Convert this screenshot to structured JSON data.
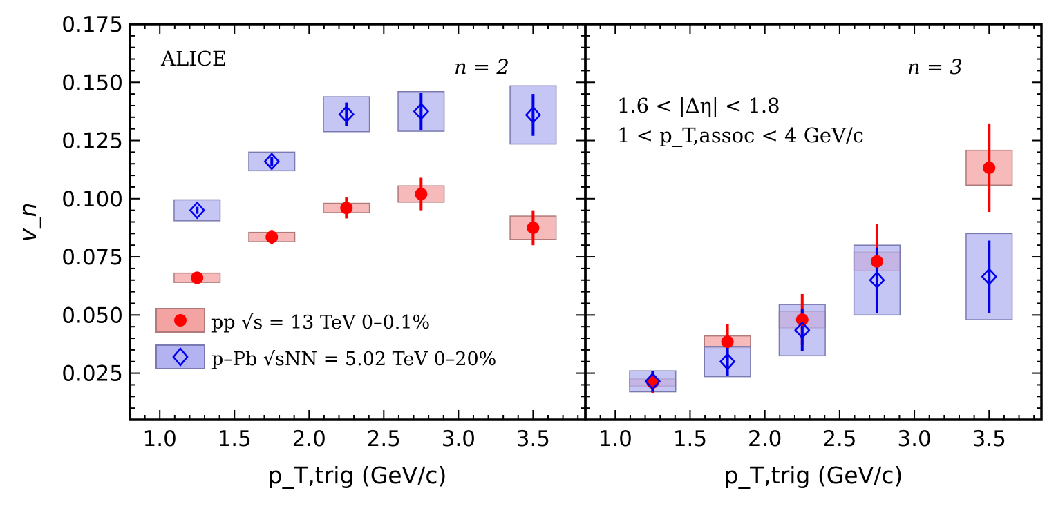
{
  "chart_data": [
    {
      "type": "scatter",
      "panel": "left",
      "annotations": [
        "ALICE",
        "n = 2"
      ],
      "xlabel": "p_T,trig (GeV/c)",
      "ylabel": "v_n",
      "xlim": [
        0.8,
        3.85
      ],
      "ylim": [
        0.005,
        0.175
      ],
      "xticks": [
        "1.0",
        "1.5",
        "2.0",
        "2.5",
        "3.0",
        "3.5"
      ],
      "yticks": [
        "0.025",
        "0.050",
        "0.075",
        "0.100",
        "0.125",
        "0.150",
        "0.175"
      ],
      "legend_placement": "lower-left",
      "series": [
        {
          "name": "pp √s = 13 TeV 0–0.1%",
          "marker": "circle",
          "color": "#ff0000",
          "box_color": "#f4a3a3",
          "x": [
            1.25,
            1.75,
            2.25,
            2.75,
            3.5
          ],
          "y": [
            0.066,
            0.0835,
            0.096,
            0.102,
            0.0875
          ],
          "stat_err": [
            0.0015,
            0.003,
            0.0045,
            0.007,
            0.0075
          ],
          "sys_err": [
            0.002,
            0.002,
            0.002,
            0.0035,
            0.005
          ]
        },
        {
          "name": "p–Pb √sNN = 5.02 TeV 0–20%",
          "marker": "diamond",
          "color": "#0000ee",
          "box_color": "#b3b3f2",
          "x": [
            1.25,
            1.75,
            2.25,
            2.75,
            3.5
          ],
          "y": [
            0.095,
            0.116,
            0.1363,
            0.1375,
            0.136
          ],
          "stat_err": [
            0.0015,
            0.002,
            0.005,
            0.008,
            0.009
          ],
          "sys_err": [
            0.0045,
            0.004,
            0.0075,
            0.0085,
            0.0125
          ]
        }
      ]
    },
    {
      "type": "scatter",
      "panel": "right",
      "annotations": [
        "n = 3",
        "1.6 < |Δη| < 1.8",
        "1 < p_T,assoc < 4 GeV/c"
      ],
      "xlabel": "p_T,trig (GeV/c)",
      "ylabel": "",
      "xlim": [
        0.8,
        3.85
      ],
      "ylim": [
        0.005,
        0.175
      ],
      "xticks": [
        "1.0",
        "1.5",
        "2.0",
        "2.5",
        "3.0",
        "3.5"
      ],
      "series": [
        {
          "name": "pp √s = 13 TeV 0–0.1%",
          "marker": "circle",
          "color": "#ff0000",
          "box_color": "#f4a3a3",
          "x": [
            1.25,
            1.75,
            2.25,
            2.75,
            3.5
          ],
          "y": [
            0.021,
            0.0385,
            0.048,
            0.073,
            0.1133
          ],
          "stat_err": [
            0.0045,
            0.0075,
            0.011,
            0.016,
            0.019
          ],
          "sys_err": [
            0.0015,
            0.0025,
            0.0035,
            0.004,
            0.0075
          ]
        },
        {
          "name": "p–Pb √sNN = 5.02 TeV 0–20%",
          "marker": "diamond",
          "color": "#0000ee",
          "box_color": "#b3b3f2",
          "x": [
            1.25,
            1.75,
            2.25,
            2.75,
            3.5
          ],
          "y": [
            0.0215,
            0.03,
            0.0435,
            0.065,
            0.0665
          ],
          "stat_err": [
            0.0045,
            0.006,
            0.009,
            0.014,
            0.0155
          ],
          "sys_err": [
            0.0045,
            0.0065,
            0.011,
            0.015,
            0.0185
          ]
        }
      ]
    }
  ]
}
